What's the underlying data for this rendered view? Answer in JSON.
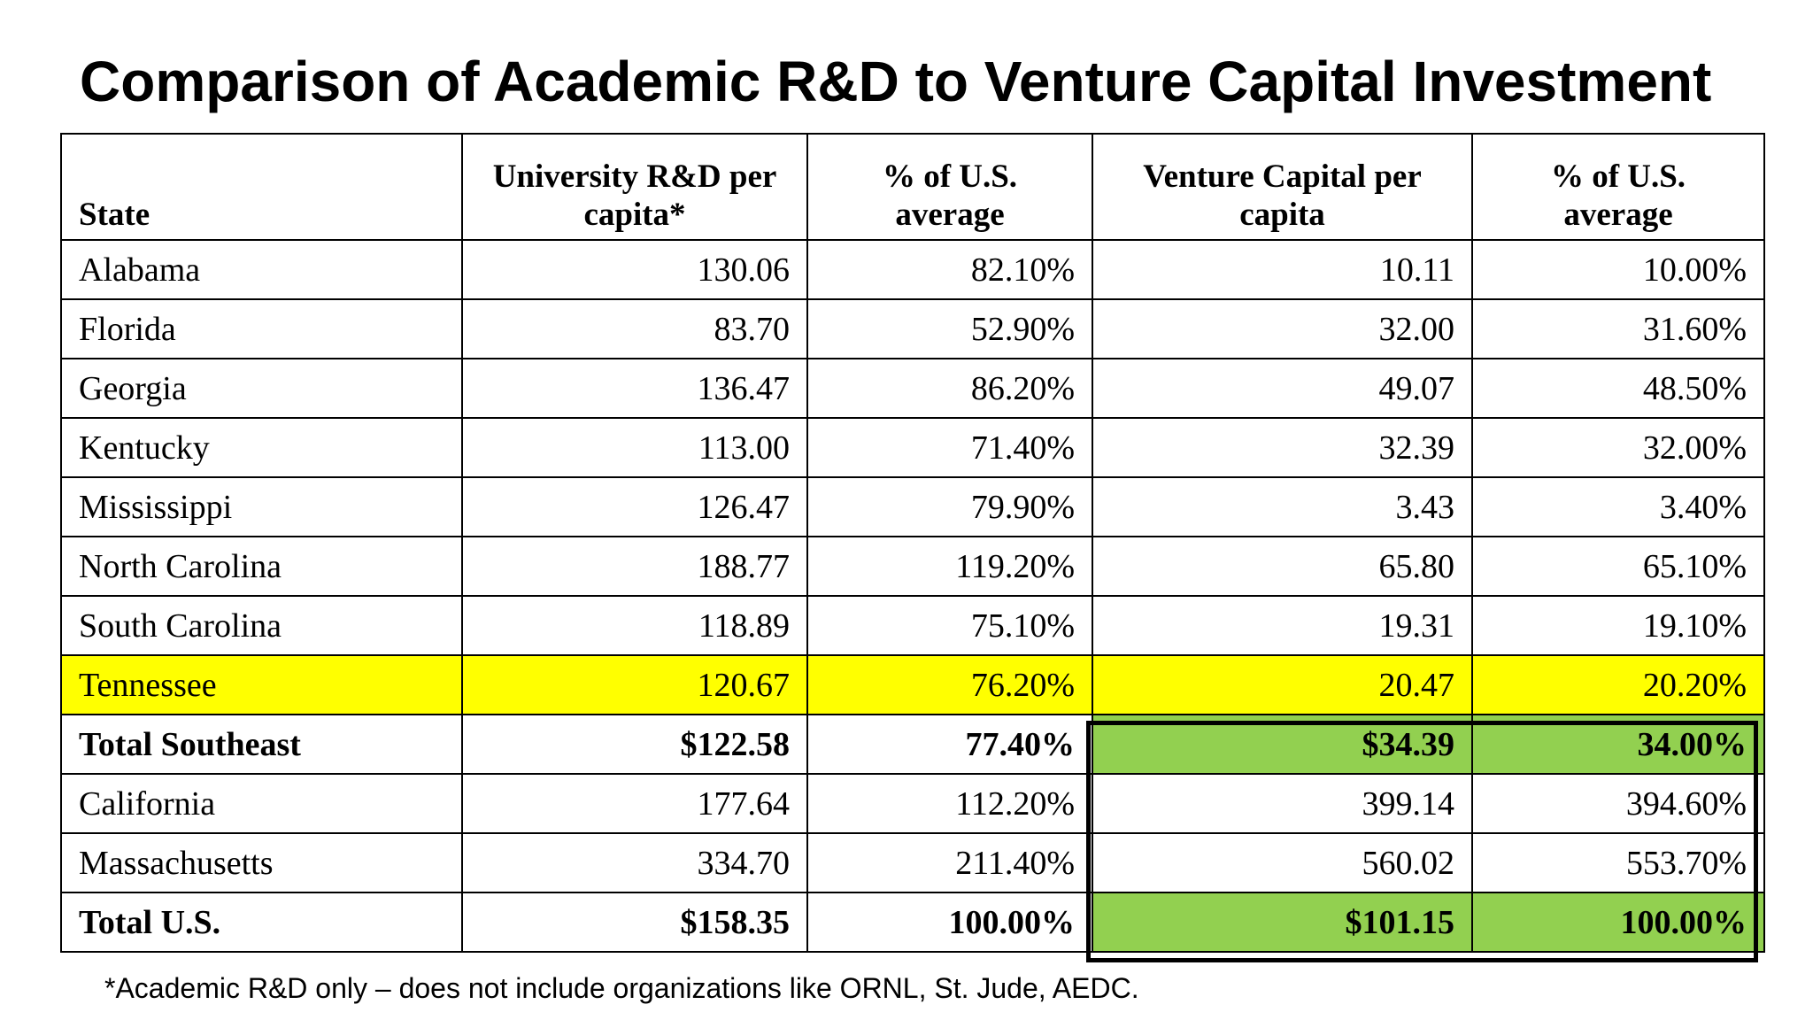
{
  "title": "Comparison of Academic R&D to Venture Capital Investment",
  "table": {
    "headers": {
      "state": "State",
      "rd_line1": "University R&D per",
      "rd_line2": "capita*",
      "rd_pct_line1": "% of U.S.",
      "rd_pct_line2": "average",
      "vc_line1": "Venture Capital per",
      "vc_line2": "capita",
      "vc_pct_line1": "% of U.S.",
      "vc_pct_line2": "average"
    },
    "rows": [
      {
        "state": "Alabama",
        "rd": "130.06",
        "rd_pct": "82.10%",
        "vc": "10.11",
        "vc_pct": "10.00%"
      },
      {
        "state": "Florida",
        "rd": "83.70",
        "rd_pct": "52.90%",
        "vc": "32.00",
        "vc_pct": "31.60%"
      },
      {
        "state": "Georgia",
        "rd": "136.47",
        "rd_pct": "86.20%",
        "vc": "49.07",
        "vc_pct": "48.50%"
      },
      {
        "state": "Kentucky",
        "rd": "113.00",
        "rd_pct": "71.40%",
        "vc": "32.39",
        "vc_pct": "32.00%"
      },
      {
        "state": "Mississippi",
        "rd": "126.47",
        "rd_pct": "79.90%",
        "vc": "3.43",
        "vc_pct": "3.40%"
      },
      {
        "state": "North Carolina",
        "rd": "188.77",
        "rd_pct": "119.20%",
        "vc": "65.80",
        "vc_pct": "65.10%"
      },
      {
        "state": "South Carolina",
        "rd": "118.89",
        "rd_pct": "75.10%",
        "vc": "19.31",
        "vc_pct": "19.10%"
      },
      {
        "state": "Tennessee",
        "rd": "120.67",
        "rd_pct": "76.20%",
        "vc": "20.47",
        "vc_pct": "20.20%"
      },
      {
        "state": "Total Southeast",
        "rd": "$122.58",
        "rd_pct": "77.40%",
        "vc": "$34.39",
        "vc_pct": "34.00%"
      },
      {
        "state": "California",
        "rd": "177.64",
        "rd_pct": "112.20%",
        "vc": "399.14",
        "vc_pct": "394.60%"
      },
      {
        "state": "Massachusetts",
        "rd": "334.70",
        "rd_pct": "211.40%",
        "vc": "560.02",
        "vc_pct": "553.70%"
      },
      {
        "state": "Total U.S.",
        "rd": "$158.35",
        "rd_pct": "100.00%",
        "vc": "$101.15",
        "vc_pct": "100.00%"
      }
    ]
  },
  "colors": {
    "highlight_yellow": "#ffff00",
    "highlight_green": "#92d050"
  },
  "footnote": "*Academic R&D only – does not include organizations like ORNL, St. Jude, AEDC."
}
